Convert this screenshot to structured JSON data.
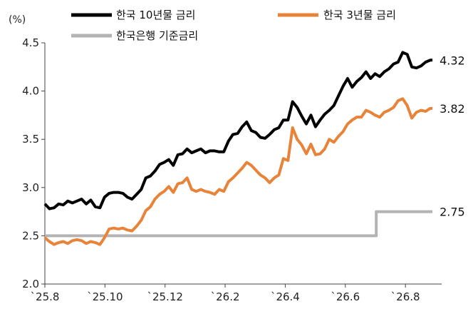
{
  "chart_data": {
    "type": "line",
    "ylabel": "(%)",
    "ylim": [
      2.0,
      4.5
    ],
    "yticks": [
      "2.0",
      "2.5",
      "3.0",
      "3.5",
      "4.0",
      "4.5"
    ],
    "xticks": [
      "`25.8",
      "`25.10",
      "`25.12",
      "`26.2",
      "`26.4",
      "`26.6",
      "`26.8"
    ],
    "legend_position": "top",
    "series": [
      {
        "name": "한국 10년물 금리",
        "color": "#000000",
        "end_label": "4.32",
        "points": [
          [
            0,
            2.83
          ],
          [
            0.2,
            2.78
          ],
          [
            0.4,
            2.79
          ],
          [
            0.6,
            2.83
          ],
          [
            0.8,
            2.82
          ],
          [
            1.0,
            2.86
          ],
          [
            1.2,
            2.84
          ],
          [
            1.4,
            2.86
          ],
          [
            1.6,
            2.88
          ],
          [
            1.8,
            2.83
          ],
          [
            2.0,
            2.87
          ],
          [
            2.2,
            2.8
          ],
          [
            2.4,
            2.79
          ],
          [
            2.6,
            2.9
          ],
          [
            2.8,
            2.94
          ],
          [
            3.0,
            2.95
          ],
          [
            3.2,
            2.95
          ],
          [
            3.4,
            2.94
          ],
          [
            3.6,
            2.9
          ],
          [
            3.8,
            2.88
          ],
          [
            4.0,
            2.93
          ],
          [
            4.2,
            2.98
          ],
          [
            4.4,
            3.1
          ],
          [
            4.6,
            3.12
          ],
          [
            4.8,
            3.17
          ],
          [
            5.0,
            3.24
          ],
          [
            5.2,
            3.26
          ],
          [
            5.4,
            3.29
          ],
          [
            5.6,
            3.23
          ],
          [
            5.8,
            3.34
          ],
          [
            6.0,
            3.35
          ],
          [
            6.2,
            3.4
          ],
          [
            6.4,
            3.36
          ],
          [
            6.6,
            3.38
          ],
          [
            6.8,
            3.4
          ],
          [
            7.0,
            3.36
          ],
          [
            7.2,
            3.38
          ],
          [
            7.4,
            3.38
          ],
          [
            7.6,
            3.37
          ],
          [
            7.8,
            3.37
          ],
          [
            8.0,
            3.48
          ],
          [
            8.2,
            3.55
          ],
          [
            8.4,
            3.56
          ],
          [
            8.6,
            3.63
          ],
          [
            8.8,
            3.68
          ],
          [
            9.0,
            3.59
          ],
          [
            9.2,
            3.57
          ],
          [
            9.4,
            3.52
          ],
          [
            9.6,
            3.51
          ],
          [
            9.8,
            3.55
          ],
          [
            10.0,
            3.6
          ],
          [
            10.2,
            3.62
          ],
          [
            10.4,
            3.7
          ],
          [
            10.6,
            3.7
          ],
          [
            10.8,
            3.89
          ],
          [
            11.0,
            3.83
          ],
          [
            11.2,
            3.74
          ],
          [
            11.4,
            3.66
          ],
          [
            11.6,
            3.75
          ],
          [
            11.8,
            3.63
          ],
          [
            12.0,
            3.7
          ],
          [
            12.2,
            3.76
          ],
          [
            12.4,
            3.8
          ],
          [
            12.6,
            3.85
          ],
          [
            12.8,
            3.95
          ],
          [
            13.0,
            4.05
          ],
          [
            13.2,
            4.13
          ],
          [
            13.4,
            4.04
          ],
          [
            13.6,
            4.1
          ],
          [
            13.8,
            4.14
          ],
          [
            14.0,
            4.2
          ],
          [
            14.2,
            4.13
          ],
          [
            14.4,
            4.18
          ],
          [
            14.6,
            4.15
          ],
          [
            14.8,
            4.2
          ],
          [
            15.0,
            4.23
          ],
          [
            15.2,
            4.28
          ],
          [
            15.4,
            4.3
          ],
          [
            15.6,
            4.4
          ],
          [
            15.8,
            4.38
          ],
          [
            16.0,
            4.25
          ],
          [
            16.2,
            4.24
          ],
          [
            16.4,
            4.26
          ],
          [
            16.6,
            4.3
          ],
          [
            16.8,
            4.32
          ],
          [
            16.9,
            4.32
          ]
        ]
      },
      {
        "name": "한국 3년물 금리",
        "color": "#e8833a",
        "end_label": "3.82",
        "points": [
          [
            0,
            2.48
          ],
          [
            0.2,
            2.44
          ],
          [
            0.4,
            2.41
          ],
          [
            0.6,
            2.43
          ],
          [
            0.8,
            2.44
          ],
          [
            1.0,
            2.42
          ],
          [
            1.2,
            2.45
          ],
          [
            1.4,
            2.46
          ],
          [
            1.6,
            2.45
          ],
          [
            1.8,
            2.42
          ],
          [
            2.0,
            2.44
          ],
          [
            2.2,
            2.43
          ],
          [
            2.4,
            2.41
          ],
          [
            2.6,
            2.48
          ],
          [
            2.8,
            2.57
          ],
          [
            3.0,
            2.58
          ],
          [
            3.2,
            2.57
          ],
          [
            3.4,
            2.58
          ],
          [
            3.6,
            2.56
          ],
          [
            3.8,
            2.55
          ],
          [
            4.0,
            2.6
          ],
          [
            4.2,
            2.66
          ],
          [
            4.4,
            2.76
          ],
          [
            4.6,
            2.8
          ],
          [
            4.8,
            2.88
          ],
          [
            5.0,
            2.93
          ],
          [
            5.2,
            2.96
          ],
          [
            5.4,
            3.01
          ],
          [
            5.6,
            2.95
          ],
          [
            5.8,
            3.04
          ],
          [
            6.0,
            3.05
          ],
          [
            6.2,
            3.1
          ],
          [
            6.4,
            2.98
          ],
          [
            6.6,
            2.96
          ],
          [
            6.8,
            2.98
          ],
          [
            7.0,
            2.96
          ],
          [
            7.2,
            2.95
          ],
          [
            7.4,
            2.93
          ],
          [
            7.6,
            2.98
          ],
          [
            7.8,
            2.96
          ],
          [
            8.0,
            3.06
          ],
          [
            8.2,
            3.1
          ],
          [
            8.4,
            3.15
          ],
          [
            8.6,
            3.2
          ],
          [
            8.8,
            3.26
          ],
          [
            9.0,
            3.23
          ],
          [
            9.2,
            3.18
          ],
          [
            9.4,
            3.13
          ],
          [
            9.6,
            3.1
          ],
          [
            9.8,
            3.05
          ],
          [
            10.0,
            3.1
          ],
          [
            10.2,
            3.13
          ],
          [
            10.4,
            3.3
          ],
          [
            10.6,
            3.28
          ],
          [
            10.8,
            3.62
          ],
          [
            11.0,
            3.5
          ],
          [
            11.2,
            3.44
          ],
          [
            11.4,
            3.35
          ],
          [
            11.6,
            3.45
          ],
          [
            11.8,
            3.34
          ],
          [
            12.0,
            3.35
          ],
          [
            12.2,
            3.4
          ],
          [
            12.4,
            3.5
          ],
          [
            12.6,
            3.47
          ],
          [
            12.8,
            3.53
          ],
          [
            13.0,
            3.58
          ],
          [
            13.2,
            3.66
          ],
          [
            13.4,
            3.7
          ],
          [
            13.6,
            3.73
          ],
          [
            13.8,
            3.73
          ],
          [
            14.0,
            3.8
          ],
          [
            14.2,
            3.78
          ],
          [
            14.4,
            3.75
          ],
          [
            14.6,
            3.73
          ],
          [
            14.8,
            3.78
          ],
          [
            15.0,
            3.8
          ],
          [
            15.2,
            3.83
          ],
          [
            15.4,
            3.9
          ],
          [
            15.6,
            3.92
          ],
          [
            15.8,
            3.85
          ],
          [
            16.0,
            3.72
          ],
          [
            16.2,
            3.78
          ],
          [
            16.4,
            3.8
          ],
          [
            16.6,
            3.79
          ],
          [
            16.8,
            3.82
          ],
          [
            16.9,
            3.82
          ]
        ]
      },
      {
        "name": "한국은행 기준금리",
        "color": "#b3b3b3",
        "end_label": "2.75",
        "points": [
          [
            0,
            2.5
          ],
          [
            14.45,
            2.5
          ],
          [
            14.45,
            2.75
          ],
          [
            16.9,
            2.75
          ]
        ]
      }
    ]
  }
}
